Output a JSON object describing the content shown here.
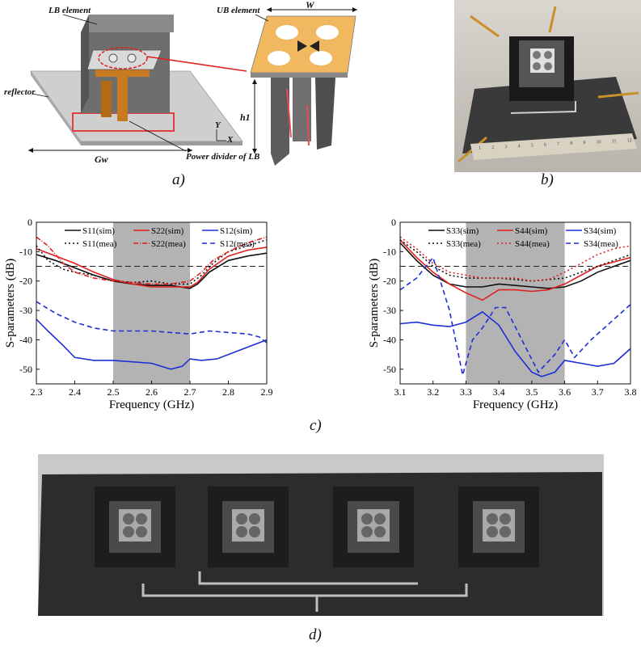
{
  "captions": {
    "a": "a)",
    "b": "b)",
    "c": "c)",
    "d": "d)"
  },
  "diagram_a": {
    "lb_element": "LB element",
    "ub_element": "UB element",
    "reflector": "reflector",
    "power_divider": "Power divider of LB",
    "gw": "Gw",
    "w": "W",
    "h1": "h1",
    "axis_y": "Y",
    "axis_x": "X"
  },
  "photo_b": {
    "ruler_marks": [
      "1",
      "2",
      "3",
      "4",
      "5",
      "6",
      "7",
      "8",
      "9",
      "10",
      "11",
      "12"
    ]
  },
  "chart_data": [
    {
      "type": "line",
      "xlabel": "Frequency (GHz)",
      "ylabel": "S-parameters (dB)",
      "xlim": [
        2.3,
        2.9
      ],
      "ylim": [
        -55,
        0
      ],
      "xticks": [
        "2.3",
        "2.4",
        "2.5",
        "2.6",
        "2.7",
        "2.8",
        "2.9"
      ],
      "yticks": [
        "0",
        "-10",
        "-20",
        "-30",
        "-40",
        "-50"
      ],
      "band": [
        2.5,
        2.7
      ],
      "threshold": -15,
      "legend": [
        "S11(sim)",
        "S22(sim)",
        "S12(sim)",
        "S11(mea)",
        "S22(mea)",
        "S12(mea)"
      ],
      "series": [
        {
          "name": "S11(sim)",
          "color": "#111111",
          "dash": "",
          "x": [
            2.3,
            2.35,
            2.4,
            2.45,
            2.5,
            2.55,
            2.6,
            2.65,
            2.7,
            2.72,
            2.75,
            2.8,
            2.85,
            2.9
          ],
          "y": [
            -11,
            -13,
            -15.5,
            -18,
            -20,
            -21,
            -21.5,
            -21.5,
            -22.5,
            -21,
            -17,
            -13,
            -11.5,
            -10.5
          ]
        },
        {
          "name": "S22(sim)",
          "color": "#e02020",
          "dash": "",
          "x": [
            2.3,
            2.35,
            2.4,
            2.45,
            2.5,
            2.55,
            2.6,
            2.65,
            2.7,
            2.72,
            2.75,
            2.8,
            2.85,
            2.9
          ],
          "y": [
            -9,
            -11.5,
            -14,
            -17,
            -19.5,
            -21,
            -22,
            -22,
            -22,
            -20.5,
            -16,
            -11.5,
            -9.5,
            -8.5
          ]
        },
        {
          "name": "S12(sim)",
          "color": "#1e2fd6",
          "dash": "",
          "x": [
            2.3,
            2.33,
            2.37,
            2.4,
            2.45,
            2.5,
            2.55,
            2.6,
            2.65,
            2.68,
            2.7,
            2.73,
            2.77,
            2.82,
            2.86,
            2.9
          ],
          "y": [
            -33,
            -37,
            -42,
            -46,
            -47,
            -47,
            -47.5,
            -48,
            -50,
            -49,
            -46.5,
            -47,
            -46.5,
            -44,
            -42,
            -40
          ]
        },
        {
          "name": "S11(mea)",
          "color": "#111111",
          "dash": "2,3",
          "x": [
            2.3,
            2.33,
            2.37,
            2.4,
            2.45,
            2.5,
            2.55,
            2.6,
            2.65,
            2.7,
            2.73,
            2.76,
            2.8,
            2.85,
            2.9
          ],
          "y": [
            -8,
            -13,
            -16,
            -17,
            -18,
            -20,
            -20.5,
            -20,
            -21,
            -21,
            -18,
            -14,
            -10,
            -8,
            -6
          ]
        },
        {
          "name": "S22(mea)",
          "color": "#e02020",
          "dash": "6,2,1,2",
          "x": [
            2.3,
            2.33,
            2.37,
            2.4,
            2.45,
            2.5,
            2.55,
            2.6,
            2.65,
            2.7,
            2.73,
            2.76,
            2.8,
            2.85,
            2.9
          ],
          "y": [
            -5,
            -8,
            -14,
            -17,
            -19,
            -20,
            -20.5,
            -21,
            -21,
            -20,
            -17,
            -13,
            -10,
            -7,
            -5
          ]
        },
        {
          "name": "S12(mea)",
          "color": "#1e2fd6",
          "dash": "6,4",
          "x": [
            2.3,
            2.35,
            2.4,
            2.45,
            2.5,
            2.55,
            2.6,
            2.65,
            2.7,
            2.75,
            2.8,
            2.85,
            2.88,
            2.9
          ],
          "y": [
            -27,
            -31,
            -34,
            -36,
            -37,
            -37,
            -37,
            -37.5,
            -38,
            -37,
            -37.5,
            -38,
            -39,
            -41
          ]
        }
      ]
    },
    {
      "type": "line",
      "xlabel": "Frequency (GHz)",
      "ylabel": "S-parameters (dB)",
      "xlim": [
        3.1,
        3.8
      ],
      "ylim": [
        -55,
        0
      ],
      "xticks": [
        "3.1",
        "3.2",
        "3.3",
        "3.4",
        "3.5",
        "3.6",
        "3.7",
        "3.8"
      ],
      "yticks": [
        "0",
        "-10",
        "-20",
        "-30",
        "-40",
        "-50"
      ],
      "band": [
        3.3,
        3.6
      ],
      "threshold": -15,
      "legend": [
        "S33(sim)",
        "S44(sim)",
        "S34(sim)",
        "S33(mea)",
        "S44(mea)",
        "S34(mea)"
      ],
      "series": [
        {
          "name": "S33(sim)",
          "color": "#111111",
          "dash": "",
          "x": [
            3.1,
            3.15,
            3.2,
            3.25,
            3.3,
            3.35,
            3.4,
            3.45,
            3.5,
            3.55,
            3.6,
            3.65,
            3.7,
            3.75,
            3.8
          ],
          "y": [
            -7,
            -13,
            -18,
            -21,
            -22,
            -22,
            -21,
            -21.5,
            -22,
            -22.5,
            -22,
            -20,
            -17,
            -15,
            -13
          ]
        },
        {
          "name": "S44(sim)",
          "color": "#e02020",
          "dash": "",
          "x": [
            3.1,
            3.15,
            3.2,
            3.25,
            3.3,
            3.35,
            3.4,
            3.45,
            3.5,
            3.55,
            3.6,
            3.65,
            3.7,
            3.75,
            3.8
          ],
          "y": [
            -6,
            -12,
            -17,
            -21,
            -24,
            -26.5,
            -23,
            -23,
            -23.5,
            -23,
            -21,
            -18,
            -15,
            -13.5,
            -12
          ]
        },
        {
          "name": "S34(sim)",
          "color": "#1e2fd6",
          "dash": "",
          "x": [
            3.1,
            3.15,
            3.2,
            3.25,
            3.3,
            3.35,
            3.4,
            3.45,
            3.5,
            3.53,
            3.57,
            3.6,
            3.65,
            3.7,
            3.75,
            3.8
          ],
          "y": [
            -34.5,
            -34,
            -35,
            -35.5,
            -34,
            -30.5,
            -35,
            -44,
            -51,
            -52.5,
            -51,
            -47,
            -48,
            -49,
            -48,
            -43
          ]
        },
        {
          "name": "S33(mea)",
          "color": "#111111",
          "dash": "2,3",
          "x": [
            3.1,
            3.15,
            3.2,
            3.25,
            3.3,
            3.35,
            3.4,
            3.45,
            3.5,
            3.55,
            3.6,
            3.65,
            3.7,
            3.75,
            3.8
          ],
          "y": [
            -6,
            -10,
            -15,
            -18,
            -19,
            -19,
            -19,
            -19.5,
            -20,
            -19.5,
            -19,
            -17,
            -15,
            -13,
            -11
          ]
        },
        {
          "name": "S44(mea)",
          "color": "#e02020",
          "dash": "2,3",
          "x": [
            3.1,
            3.15,
            3.2,
            3.25,
            3.3,
            3.35,
            3.4,
            3.45,
            3.5,
            3.55,
            3.6,
            3.65,
            3.7,
            3.75,
            3.8
          ],
          "y": [
            -5,
            -9,
            -14,
            -17,
            -18,
            -19,
            -19,
            -19,
            -20,
            -19.5,
            -17,
            -14,
            -11,
            -9,
            -8
          ]
        },
        {
          "name": "S34(mea)",
          "color": "#1e2fd6",
          "dash": "6,4",
          "x": [
            3.1,
            3.15,
            3.2,
            3.25,
            3.29,
            3.32,
            3.35,
            3.39,
            3.42,
            3.47,
            3.52,
            3.57,
            3.6,
            3.63,
            3.68,
            3.75,
            3.8
          ],
          "y": [
            -23,
            -19,
            -12,
            -30,
            -52,
            -40,
            -36,
            -29,
            -29,
            -40,
            -51,
            -45,
            -40,
            -46,
            -40,
            -33,
            -28
          ]
        }
      ]
    }
  ]
}
